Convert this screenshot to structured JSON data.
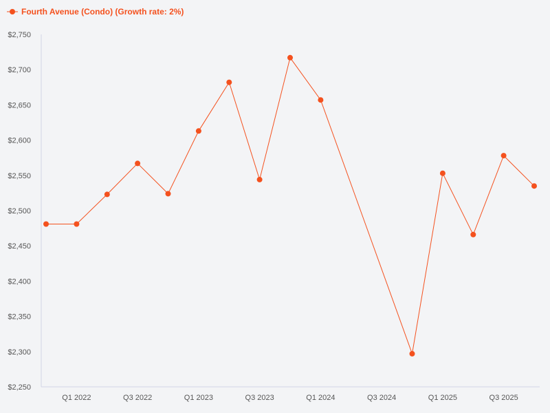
{
  "colors": {
    "background": "#f3f4f6",
    "series": "#f4511e",
    "axis": "#d1d5e6",
    "tick_text": "#555555"
  },
  "legend": {
    "position": "top-left",
    "marker_icon": "line-dot-icon"
  },
  "chart_data": {
    "type": "line",
    "grid": false,
    "xlabel": "",
    "ylabel": "",
    "x_ticks": [
      "Q1 2022",
      "Q3 2022",
      "Q1 2023",
      "Q3 2023",
      "Q1 2024",
      "Q3 2024",
      "Q1 2025",
      "Q3 2025"
    ],
    "x_tick_indices": [
      1,
      3,
      5,
      7,
      9,
      11,
      13,
      15
    ],
    "y_ticks": [
      "$2,250",
      "$2,300",
      "$2,350",
      "$2,400",
      "$2,450",
      "$2,500",
      "$2,550",
      "$2,600",
      "$2,650",
      "$2,700",
      "$2,750"
    ],
    "ylim": [
      2250,
      2750
    ],
    "x": [
      "Q4 2021",
      "Q1 2022",
      "Q2 2022",
      "Q3 2022",
      "Q4 2022",
      "Q1 2023",
      "Q2 2023",
      "Q3 2023",
      "Q4 2023",
      "Q1 2024",
      "Q2 2024",
      "Q3 2024",
      "Q4 2024",
      "Q1 2025",
      "Q2 2025",
      "Q3 2025",
      "Q4 2025"
    ],
    "series": [
      {
        "name": "Fourth Avenue (Condo) (Growth rate: 2%)",
        "values": [
          2481,
          2481,
          2523,
          2567,
          2524,
          2613,
          2682,
          2544,
          2717,
          2657,
          null,
          null,
          2297,
          2553,
          2466,
          2578,
          2535
        ]
      }
    ]
  }
}
